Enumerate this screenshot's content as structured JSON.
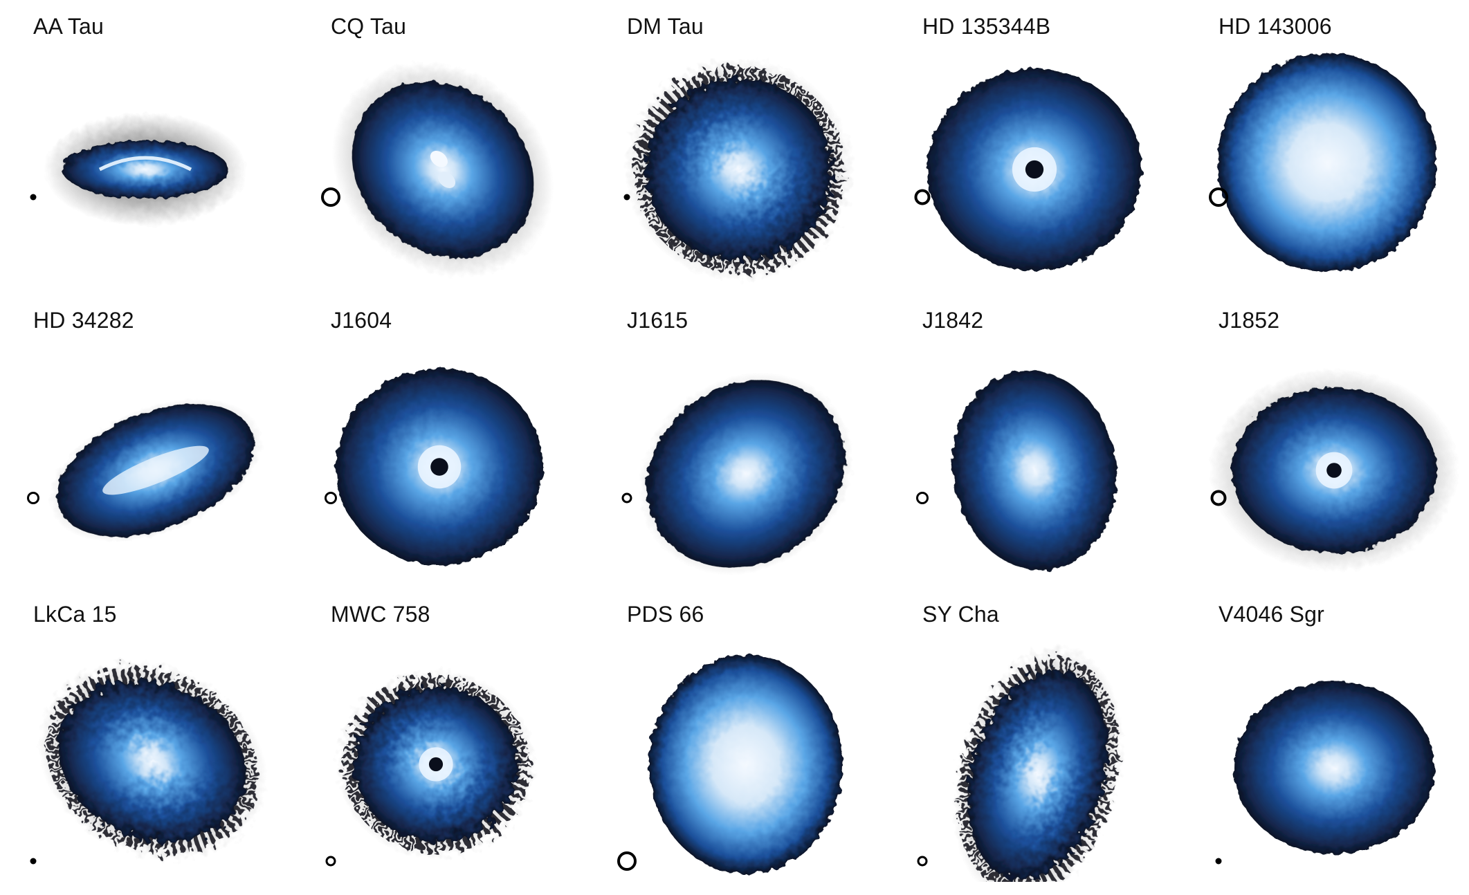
{
  "figure": {
    "panels": [
      {
        "label": "AA Tau",
        "shape": "edge-on",
        "inner": "ring-arc",
        "halo": "wide",
        "beam": "dot"
      },
      {
        "label": "CQ Tau",
        "shape": "oval",
        "inner": "bright-pair",
        "halo": "wide",
        "beam": "ring-large"
      },
      {
        "label": "DM Tau",
        "shape": "round",
        "inner": "bright-core",
        "halo": "noisy",
        "beam": "dot"
      },
      {
        "label": "HD 135344B",
        "shape": "round",
        "inner": "ring-hole",
        "halo": "none",
        "beam": "ring-medium"
      },
      {
        "label": "HD 143006",
        "shape": "round",
        "inner": "bright-wide",
        "halo": "none",
        "beam": "ring-large"
      },
      {
        "label": "HD 34282",
        "shape": "tilted",
        "inner": "bright-band",
        "halo": "faint",
        "beam": "ring-small"
      },
      {
        "label": "J1604",
        "shape": "round",
        "inner": "ring-hole",
        "halo": "none",
        "beam": "ring-small"
      },
      {
        "label": "J1615",
        "shape": "oval",
        "inner": "bright-core",
        "halo": "faint",
        "beam": "ring-tiny"
      },
      {
        "label": "J1842",
        "shape": "oval-tall",
        "inner": "bright-core",
        "halo": "none",
        "beam": "ring-small"
      },
      {
        "label": "J1852",
        "shape": "round",
        "inner": "ring-hole",
        "halo": "wide",
        "beam": "ring-medium"
      },
      {
        "label": "LkCa 15",
        "shape": "oval",
        "inner": "bright-core",
        "halo": "noisy",
        "beam": "dot"
      },
      {
        "label": "MWC 758",
        "shape": "round",
        "inner": "ring-hole",
        "halo": "noisy",
        "beam": "ring-tiny"
      },
      {
        "label": "PDS 66",
        "shape": "round",
        "inner": "bright-wide",
        "halo": "none",
        "beam": "ring-large"
      },
      {
        "label": "SY Cha",
        "shape": "oval-tall",
        "inner": "bright-core",
        "halo": "noisy",
        "beam": "ring-tiny"
      },
      {
        "label": "V4046 Sgr",
        "shape": "round",
        "inner": "bright-core",
        "halo": "none",
        "beam": "dot"
      }
    ],
    "colors": {
      "outer": "#0b1326",
      "mid": "#1b4f9a",
      "bright": "#5aa6e6",
      "core": "#f4f9ff",
      "halo": "#6e6e6e"
    }
  }
}
